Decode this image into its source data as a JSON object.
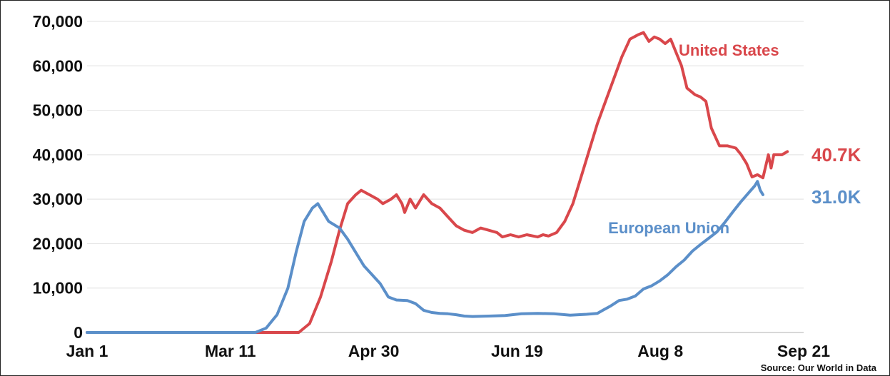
{
  "chart_data": {
    "type": "line",
    "x_ticks": [
      "Jan 1",
      "Mar 11",
      "Apr 30",
      "Jun 19",
      "Aug 8",
      "Sep 21"
    ],
    "y_ticks": [
      "0",
      "10,000",
      "20,000",
      "30,000",
      "40,000",
      "50,000",
      "60,000",
      "70,000"
    ],
    "ylim": [
      0,
      70000
    ],
    "x_range_days": [
      0,
      264
    ],
    "grid": "horizontal",
    "source": "Source: Our World in Data",
    "series": [
      {
        "name": "United States",
        "color": "#d9474b",
        "end_label": "40.7K",
        "points": [
          [
            0,
            0
          ],
          [
            78,
            0
          ],
          [
            82,
            2000
          ],
          [
            86,
            8000
          ],
          [
            90,
            16000
          ],
          [
            93,
            23000
          ],
          [
            96,
            29000
          ],
          [
            99,
            31000
          ],
          [
            101,
            32000
          ],
          [
            104,
            31000
          ],
          [
            107,
            30000
          ],
          [
            109,
            29000
          ],
          [
            112,
            30000
          ],
          [
            114,
            31000
          ],
          [
            116,
            29000
          ],
          [
            117,
            27000
          ],
          [
            119,
            30000
          ],
          [
            121,
            28000
          ],
          [
            123,
            30000
          ],
          [
            124,
            31000
          ],
          [
            127,
            29000
          ],
          [
            130,
            28000
          ],
          [
            133,
            26000
          ],
          [
            136,
            24000
          ],
          [
            139,
            23000
          ],
          [
            142,
            22500
          ],
          [
            145,
            23500
          ],
          [
            148,
            23000
          ],
          [
            151,
            22500
          ],
          [
            153,
            21500
          ],
          [
            156,
            22000
          ],
          [
            159,
            21500
          ],
          [
            162,
            22000
          ],
          [
            166,
            21500
          ],
          [
            168,
            22000
          ],
          [
            170,
            21700
          ],
          [
            173,
            22500
          ],
          [
            176,
            25000
          ],
          [
            179,
            29000
          ],
          [
            182,
            35000
          ],
          [
            185,
            41000
          ],
          [
            188,
            47000
          ],
          [
            191,
            52000
          ],
          [
            194,
            57000
          ],
          [
            197,
            62000
          ],
          [
            200,
            66000
          ],
          [
            203,
            67000
          ],
          [
            205,
            67500
          ],
          [
            207,
            65500
          ],
          [
            209,
            66500
          ],
          [
            211,
            66000
          ],
          [
            213,
            65000
          ],
          [
            215,
            66000
          ],
          [
            217,
            63000
          ],
          [
            219,
            60000
          ],
          [
            221,
            55000
          ],
          [
            224,
            53500
          ],
          [
            226,
            53000
          ],
          [
            228,
            52000
          ],
          [
            230,
            46000
          ],
          [
            233,
            42000
          ],
          [
            236,
            42000
          ],
          [
            239,
            41500
          ],
          [
            241,
            40000
          ],
          [
            243,
            38000
          ],
          [
            245,
            35000
          ],
          [
            247,
            35500
          ],
          [
            249,
            34800
          ],
          [
            251,
            40000
          ],
          [
            252,
            37000
          ],
          [
            253,
            40000
          ],
          [
            256,
            40000
          ],
          [
            258,
            40700
          ]
        ]
      },
      {
        "name": "European Union",
        "color": "#5b8fc9",
        "end_label": "31.0K",
        "points": [
          [
            0,
            0
          ],
          [
            62,
            0
          ],
          [
            66,
            1000
          ],
          [
            70,
            4000
          ],
          [
            74,
            10000
          ],
          [
            77,
            18000
          ],
          [
            80,
            25000
          ],
          [
            83,
            28000
          ],
          [
            85,
            29000
          ],
          [
            87,
            27000
          ],
          [
            89,
            25000
          ],
          [
            93,
            23500
          ],
          [
            96,
            21000
          ],
          [
            99,
            18000
          ],
          [
            102,
            15000
          ],
          [
            105,
            13000
          ],
          [
            108,
            11000
          ],
          [
            111,
            8000
          ],
          [
            114,
            7300
          ],
          [
            118,
            7200
          ],
          [
            121,
            6500
          ],
          [
            124,
            5000
          ],
          [
            127,
            4500
          ],
          [
            130,
            4300
          ],
          [
            133,
            4200
          ],
          [
            136,
            4000
          ],
          [
            139,
            3700
          ],
          [
            142,
            3600
          ],
          [
            148,
            3700
          ],
          [
            154,
            3800
          ],
          [
            160,
            4200
          ],
          [
            166,
            4300
          ],
          [
            172,
            4200
          ],
          [
            178,
            3900
          ],
          [
            184,
            4100
          ],
          [
            188,
            4300
          ],
          [
            190,
            5000
          ],
          [
            193,
            6000
          ],
          [
            196,
            7200
          ],
          [
            199,
            7500
          ],
          [
            202,
            8200
          ],
          [
            205,
            9800
          ],
          [
            208,
            10500
          ],
          [
            211,
            11600
          ],
          [
            214,
            13000
          ],
          [
            217,
            14800
          ],
          [
            220,
            16300
          ],
          [
            223,
            18300
          ],
          [
            226,
            19800
          ],
          [
            229,
            21200
          ],
          [
            232,
            22600
          ],
          [
            235,
            24800
          ],
          [
            238,
            27200
          ],
          [
            241,
            29500
          ],
          [
            244,
            31600
          ],
          [
            246,
            33000
          ],
          [
            247,
            34000
          ],
          [
            248,
            32000
          ],
          [
            249,
            31000
          ]
        ]
      }
    ]
  }
}
